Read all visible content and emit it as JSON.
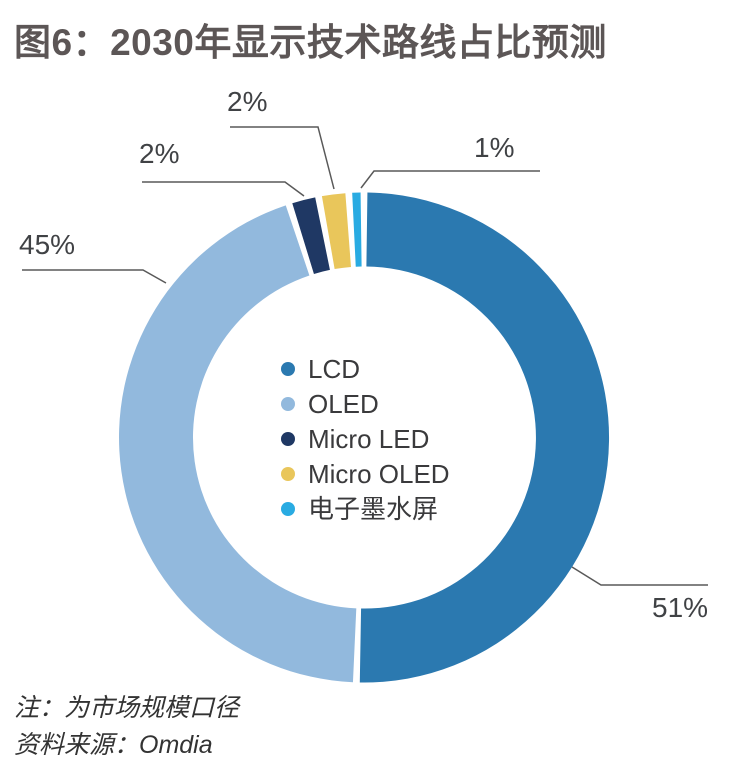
{
  "header": {
    "title": "图6：2030年显示技术路线占比预测"
  },
  "chart_data": {
    "type": "pie",
    "subtype": "donut",
    "title": "图6：2030年显示技术路线占比预测",
    "labels": [
      "LCD",
      "OLED",
      "Micro LED",
      "Micro OLED",
      "电子墨水屏"
    ],
    "keys": [
      "lcd",
      "oled",
      "micro-led",
      "micro-oled",
      "eink"
    ],
    "values": [
      51,
      45,
      2,
      2,
      1
    ],
    "unit": "%",
    "colors": [
      "#2B79B0",
      "#92B9DD",
      "#1F3864",
      "#E9C65B",
      "#29ABE2"
    ],
    "start_angle_deg": 0,
    "direction": "clockwise",
    "legend_position": "center",
    "grid": false,
    "annotations": {
      "lcd": "51%",
      "oled": "45%",
      "micro_led": "2%",
      "micro_oled": "2%",
      "eink": "1%"
    },
    "line_color": "#595959"
  },
  "footnotes": {
    "note": "注：为市场规模口径",
    "source": "资料来源：Omdia"
  }
}
